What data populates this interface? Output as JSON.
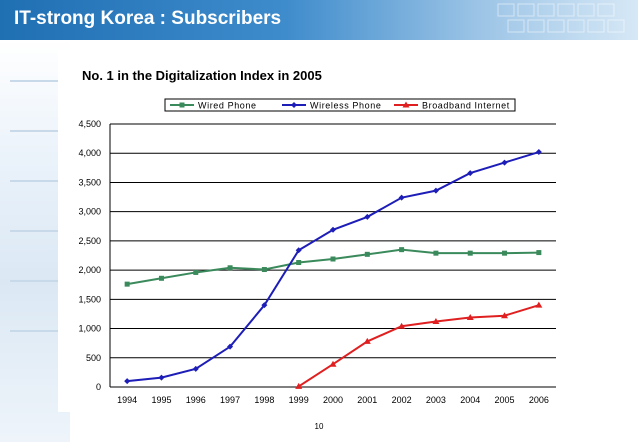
{
  "slide": {
    "title": "IT-strong Korea : Subscribers",
    "page_number": "10"
  },
  "colors": {
    "header_blue": "#1f6fb3",
    "wired": "#3a8a5c",
    "wireless": "#1d1db8",
    "broadband": "#e02020"
  },
  "chart_data": {
    "type": "line",
    "title": "No. 1 in the Digitalization Index in 2005",
    "xlabel": "",
    "ylabel": "",
    "ylim": [
      0,
      4500
    ],
    "yticks": [
      0,
      500,
      1000,
      1500,
      2000,
      2500,
      3000,
      3500,
      4000,
      4500
    ],
    "ytick_labels": [
      "0",
      "500",
      "1,000",
      "1,500",
      "2,000",
      "2,500",
      "3,000",
      "3,500",
      "4,000",
      "4,500"
    ],
    "grid": true,
    "legend_position": "top",
    "categories": [
      "1994",
      "1995",
      "1996",
      "1997",
      "1998",
      "1999",
      "2000",
      "2001",
      "2002",
      "2003",
      "2004",
      "2005",
      "2006"
    ],
    "series": [
      {
        "name": "Wired Phone",
        "color": "#3a8a5c",
        "marker": "square",
        "values": [
          1760,
          1860,
          1960,
          2040,
          2010,
          2130,
          2190,
          2270,
          2350,
          2290,
          2290,
          2290,
          2300
        ]
      },
      {
        "name": "Wireless Phone",
        "color": "#1d1db8",
        "marker": "diamond",
        "values": [
          100,
          160,
          310,
          690,
          1400,
          2340,
          2690,
          2910,
          3240,
          3360,
          3660,
          3840,
          4020
        ]
      },
      {
        "name": "Broadband Internet",
        "color": "#e02020",
        "marker": "triangle",
        "values": [
          null,
          null,
          null,
          null,
          null,
          10,
          390,
          780,
          1040,
          1120,
          1190,
          1220,
          1400
        ]
      }
    ]
  }
}
